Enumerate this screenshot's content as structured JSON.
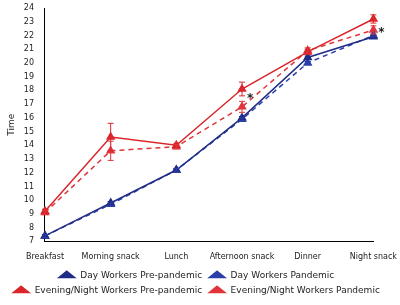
{
  "chart_data": {
    "type": "line",
    "y_label": "Time",
    "categories": [
      "Breakfast",
      "Morning snack",
      "Lunch",
      "Afternoon snack",
      "Dinner",
      "Night snack"
    ],
    "ylim": [
      7,
      24
    ],
    "yticks": [
      7,
      8,
      9,
      10,
      11,
      12,
      13,
      14,
      15,
      16,
      17,
      18,
      19,
      20,
      21,
      22,
      23,
      24
    ],
    "grid": false,
    "legend": "bottom",
    "series": [
      {
        "name": "Day Workers Pre-pandemic",
        "color": "#1f2d86",
        "marker": "triangle",
        "line_style": "solid",
        "values": [
          7.4,
          9.8,
          12.2,
          16.0,
          20.4,
          21.9
        ],
        "errors": [
          0.1,
          0.1,
          0.1,
          0.1,
          0.1,
          0.1
        ]
      },
      {
        "name": "Day Workers Pandemic",
        "color": "#2b3fa8",
        "marker": "triangle",
        "line_style": "dashed",
        "values": [
          7.4,
          9.7,
          12.2,
          15.9,
          20.0,
          22.0
        ],
        "errors": [
          0.1,
          0.1,
          0.1,
          0.1,
          0.1,
          0.1
        ]
      },
      {
        "name": "Evening/Night Workers Pre-pandemic",
        "color": "#d9262b",
        "marker": "triangle",
        "line_style": "solid",
        "values": [
          9.2,
          14.6,
          14.0,
          18.1,
          20.8,
          23.2
        ],
        "errors": [
          0.15,
          1.0,
          0.15,
          0.5,
          0.2,
          0.3
        ]
      },
      {
        "name": "Evening/Night Workers Pandemic",
        "color": "#e0353a",
        "marker": "triangle",
        "line_style": "dashed",
        "values": [
          9.1,
          13.6,
          13.9,
          16.8,
          20.9,
          22.4
        ],
        "errors": [
          0.15,
          0.7,
          0.15,
          0.4,
          0.2,
          0.3
        ]
      }
    ],
    "annotations": [
      {
        "text": "*",
        "category": "Afternoon snack",
        "y": 17.4
      },
      {
        "text": "*",
        "category": "Night snack",
        "y": 22.2
      }
    ]
  }
}
